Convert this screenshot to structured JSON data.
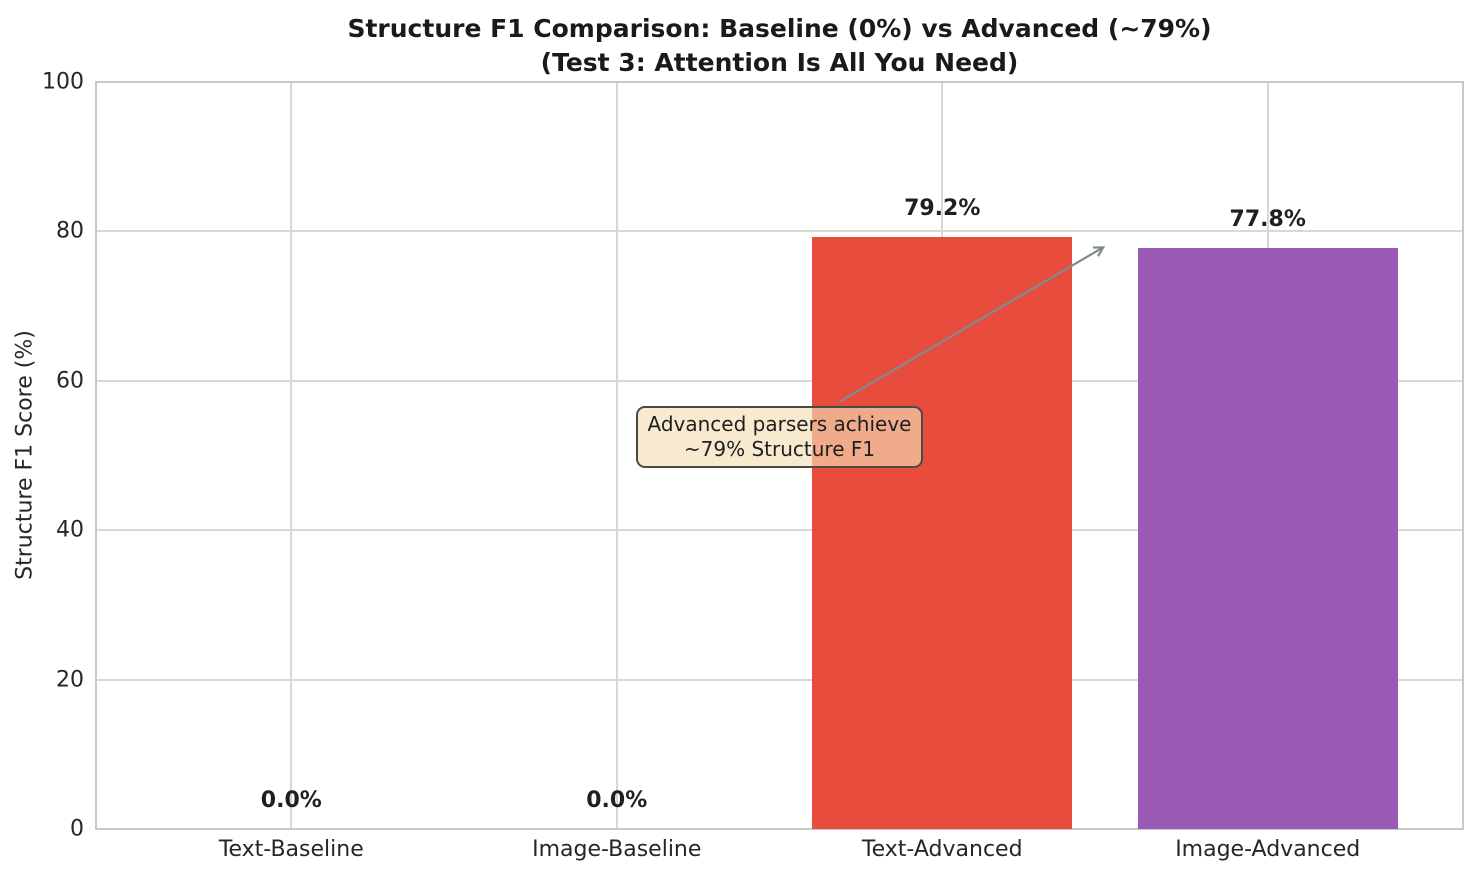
{
  "title": {
    "line1": "Structure F1 Comparison: Baseline (0%) vs Advanced (~79%)",
    "line2": "(Test 3: Attention Is All You Need)"
  },
  "chart_data": {
    "type": "bar",
    "title": "Structure F1 Comparison: Baseline (0%) vs Advanced (~79%)\n(Test 3: Attention Is All You Need)",
    "categories": [
      "Text-Baseline",
      "Image-Baseline",
      "Text-Advanced",
      "Image-Advanced"
    ],
    "values": [
      0.0,
      0.0,
      79.2,
      77.8
    ],
    "value_labels": [
      "0.0%",
      "0.0%",
      "79.2%",
      "77.8%"
    ],
    "bar_colors": [
      null,
      null,
      "#e74c3c",
      "#9b59b6"
    ],
    "xlabel": "",
    "ylabel": "Structure F1 Score (%)",
    "ylim": [
      0,
      100
    ],
    "yticks": [
      0,
      20,
      40,
      60,
      80,
      100
    ],
    "grid": true,
    "legend": null,
    "annotation": {
      "line1": "Advanced parsers achieve",
      "line2": "~79% Structure F1",
      "text_x": 1.5,
      "text_y": 52.5,
      "arrow_x": 2.5,
      "arrow_y": 78,
      "box_fill": "rgba(245,222,179,0.65)",
      "border_color": "#4a4a4a",
      "arrow_color": "#7f8c8d"
    },
    "style": {
      "grid_color": "#d8d8d8",
      "spine_color": "#c9c9c9",
      "text_color": "#262626",
      "background": "#ffffff"
    }
  }
}
